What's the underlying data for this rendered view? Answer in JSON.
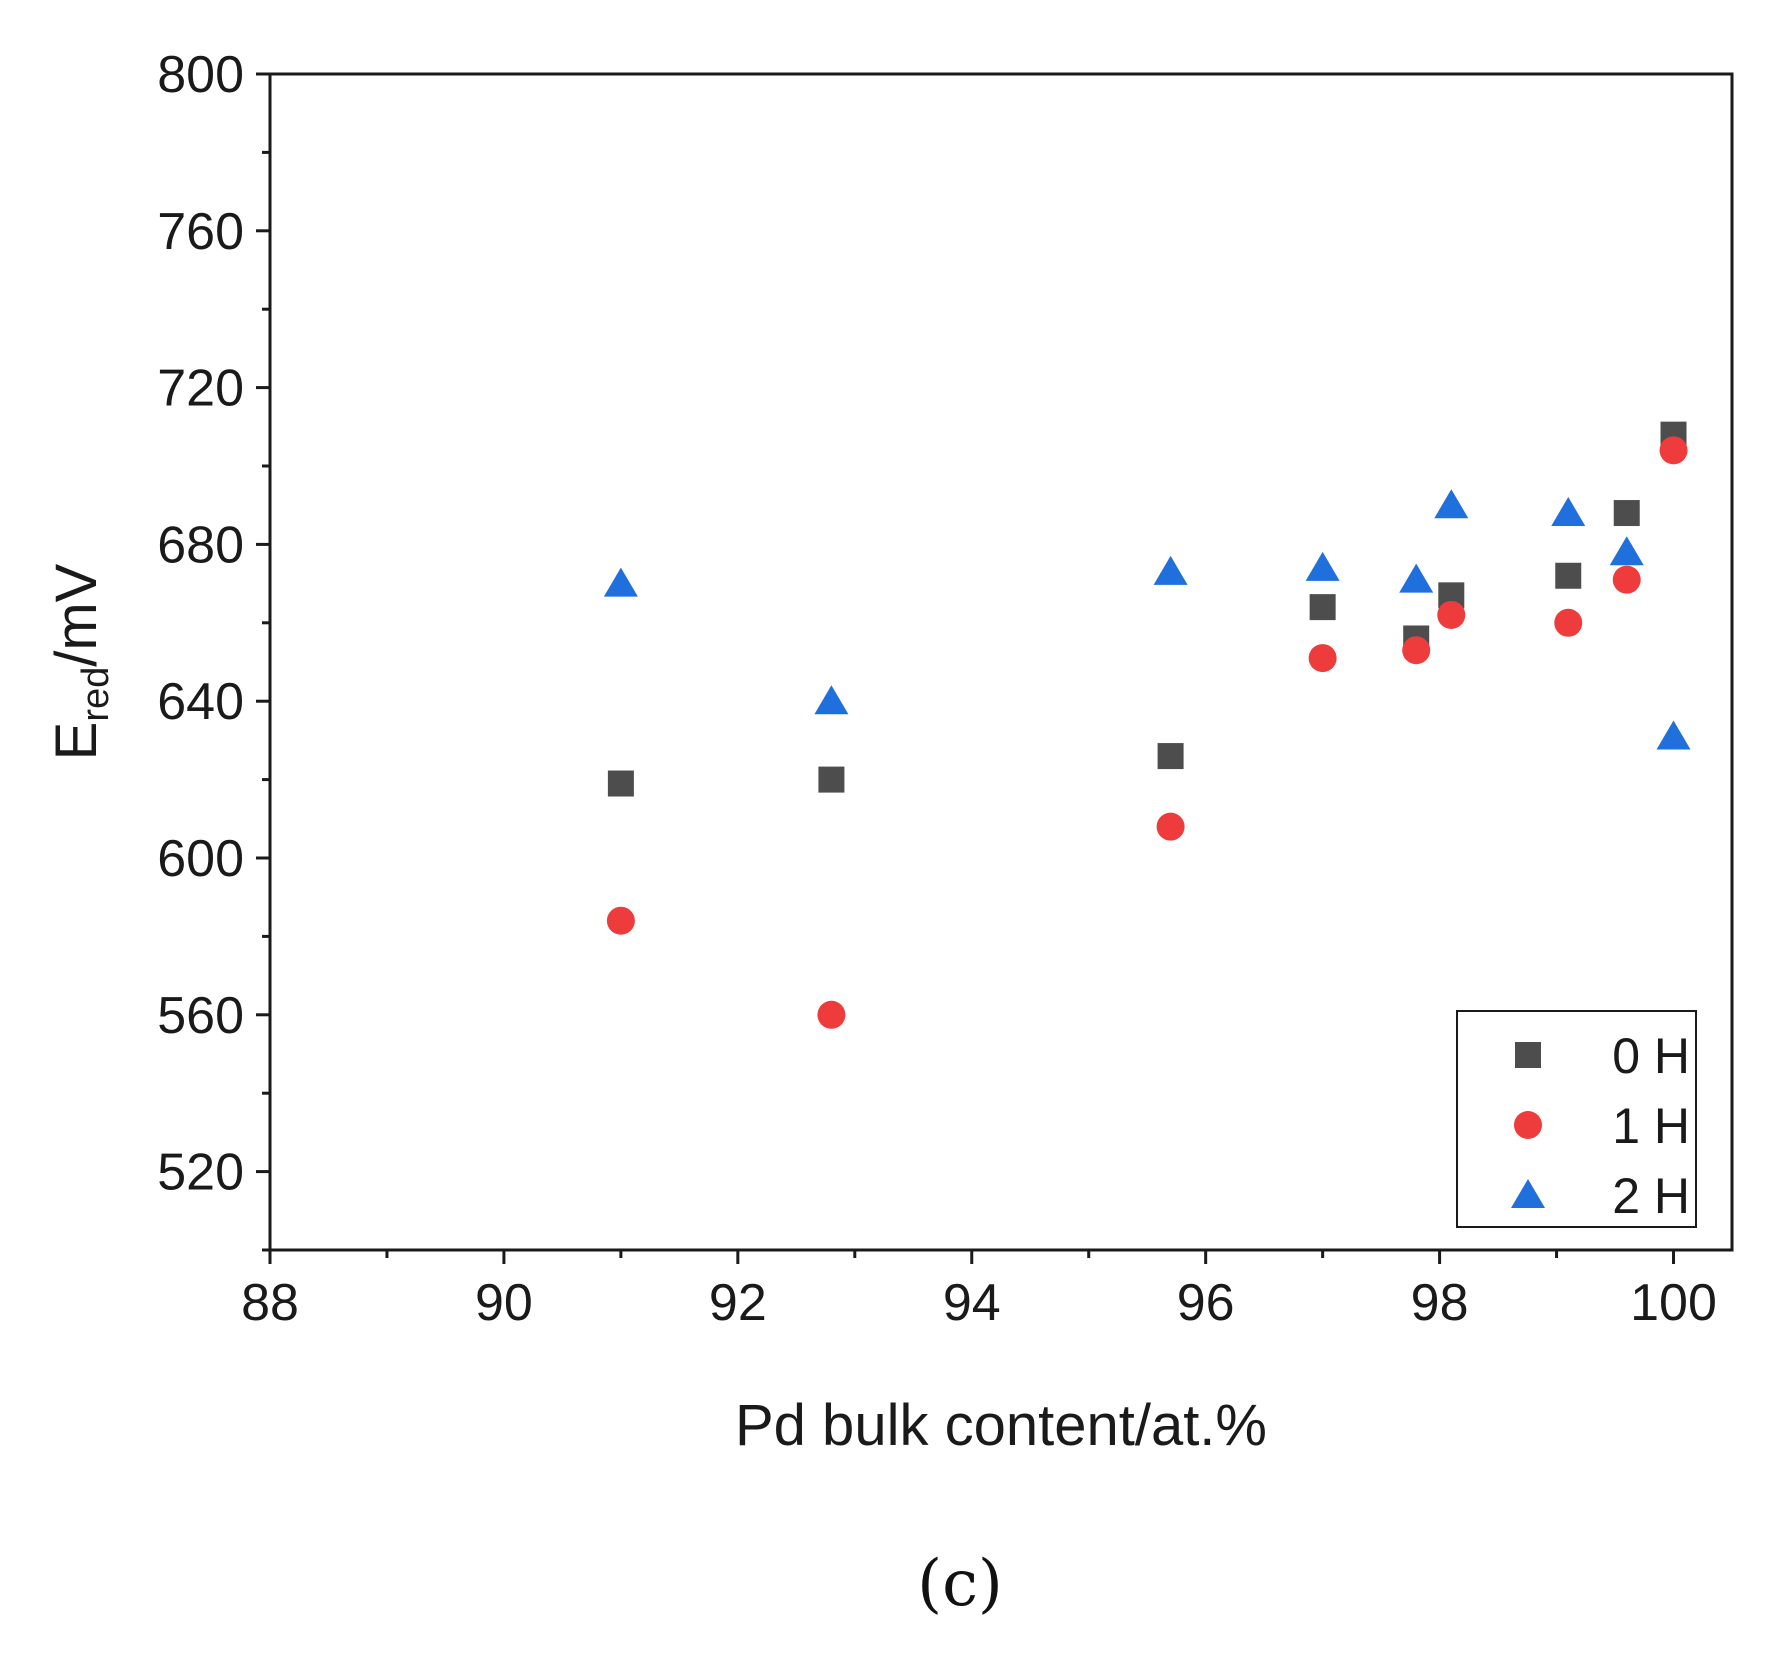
{
  "chart_data": {
    "type": "scatter",
    "title": "",
    "xlabel": "Pd bulk content/at.%",
    "ylabel": {
      "main": "E",
      "sub": "red",
      "unit": "/mV"
    },
    "xlim": [
      88,
      100.5
    ],
    "ylim": [
      500,
      800
    ],
    "xticks": [
      88,
      90,
      92,
      94,
      96,
      98,
      100
    ],
    "yticks": [
      520,
      560,
      600,
      640,
      680,
      720,
      760,
      800
    ],
    "legend_position": "bottom-right",
    "series": [
      {
        "name": "0 H",
        "marker": "square",
        "color": "#4d4d4d",
        "points": [
          {
            "x": 91.0,
            "y": 619
          },
          {
            "x": 92.8,
            "y": 620
          },
          {
            "x": 95.7,
            "y": 626
          },
          {
            "x": 97.0,
            "y": 664
          },
          {
            "x": 97.8,
            "y": 656
          },
          {
            "x": 98.1,
            "y": 667
          },
          {
            "x": 99.1,
            "y": 672
          },
          {
            "x": 99.6,
            "y": 688
          },
          {
            "x": 100.0,
            "y": 708
          }
        ]
      },
      {
        "name": "1 H",
        "marker": "circle",
        "color": "#ee3b3b",
        "points": [
          {
            "x": 91.0,
            "y": 584
          },
          {
            "x": 92.8,
            "y": 560
          },
          {
            "x": 95.7,
            "y": 608
          },
          {
            "x": 97.0,
            "y": 651
          },
          {
            "x": 97.8,
            "y": 653
          },
          {
            "x": 98.1,
            "y": 662
          },
          {
            "x": 99.1,
            "y": 660
          },
          {
            "x": 99.6,
            "y": 671
          },
          {
            "x": 100.0,
            "y": 704
          }
        ]
      },
      {
        "name": "2 H",
        "marker": "triangle",
        "color": "#1f6fdc",
        "points": [
          {
            "x": 91.0,
            "y": 670
          },
          {
            "x": 92.8,
            "y": 640
          },
          {
            "x": 95.7,
            "y": 673
          },
          {
            "x": 97.0,
            "y": 674
          },
          {
            "x": 97.8,
            "y": 671
          },
          {
            "x": 98.1,
            "y": 690
          },
          {
            "x": 99.1,
            "y": 688
          },
          {
            "x": 99.6,
            "y": 678
          },
          {
            "x": 100.0,
            "y": 631
          }
        ]
      }
    ]
  },
  "caption": "(c)"
}
